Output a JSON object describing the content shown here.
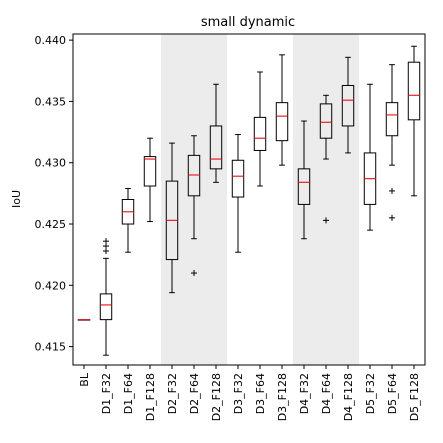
{
  "chart_data": {
    "type": "box",
    "title": "small dynamic",
    "xlabel": "",
    "ylabel": "IoU",
    "ylim": [
      0.4135,
      0.4405
    ],
    "yticks": [
      0.415,
      0.42,
      0.425,
      0.43,
      0.435,
      0.44
    ],
    "ytick_labels": [
      "0.415",
      "0.420",
      "0.425",
      "0.430",
      "0.435",
      "0.440"
    ],
    "grid": false,
    "shaded_groups": [
      [
        "D2_F32",
        "D2_F128"
      ],
      [
        "D4_F32",
        "D4_F128"
      ]
    ],
    "categories": [
      "BL",
      "D1_F32",
      "D1_F64",
      "D1_F128",
      "D2_F32",
      "D2_F64",
      "D2_F128",
      "D3_F32",
      "D3_F64",
      "D3_F128",
      "D4_F32",
      "D4_F64",
      "D4_F128",
      "D5_F32",
      "D5_F64",
      "D5_F128"
    ],
    "boxes": [
      {
        "label": "BL",
        "whisker_low": 0.4172,
        "q1": 0.4172,
        "median": 0.4172,
        "q3": 0.4172,
        "whisker_high": 0.4172,
        "outliers": []
      },
      {
        "label": "D1_F32",
        "whisker_low": 0.4143,
        "q1": 0.4172,
        "median": 0.4184,
        "q3": 0.4193,
        "whisker_high": 0.4222,
        "outliers": [
          0.4228,
          0.4232,
          0.4236
        ]
      },
      {
        "label": "D1_F64",
        "whisker_low": 0.4227,
        "q1": 0.425,
        "median": 0.426,
        "q3": 0.427,
        "whisker_high": 0.4279,
        "outliers": []
      },
      {
        "label": "D1_F128",
        "whisker_low": 0.4252,
        "q1": 0.4281,
        "median": 0.4303,
        "q3": 0.4305,
        "whisker_high": 0.432,
        "outliers": []
      },
      {
        "label": "D2_F32",
        "whisker_low": 0.4194,
        "q1": 0.4221,
        "median": 0.4253,
        "q3": 0.4285,
        "whisker_high": 0.4316,
        "outliers": []
      },
      {
        "label": "D2_F64",
        "whisker_low": 0.4238,
        "q1": 0.4273,
        "median": 0.429,
        "q3": 0.4306,
        "whisker_high": 0.4322,
        "outliers": [
          0.421
        ]
      },
      {
        "label": "D2_F128",
        "whisker_low": 0.4284,
        "q1": 0.4295,
        "median": 0.4303,
        "q3": 0.433,
        "whisker_high": 0.4364,
        "outliers": []
      },
      {
        "label": "D3_F32",
        "whisker_low": 0.4227,
        "q1": 0.4272,
        "median": 0.4289,
        "q3": 0.4302,
        "whisker_high": 0.4323,
        "outliers": []
      },
      {
        "label": "D3_F64",
        "whisker_low": 0.4281,
        "q1": 0.431,
        "median": 0.432,
        "q3": 0.4337,
        "whisker_high": 0.4374,
        "outliers": []
      },
      {
        "label": "D3_F128",
        "whisker_low": 0.4298,
        "q1": 0.4318,
        "median": 0.4338,
        "q3": 0.4349,
        "whisker_high": 0.4388,
        "outliers": []
      },
      {
        "label": "D4_F32",
        "whisker_low": 0.4238,
        "q1": 0.4266,
        "median": 0.4284,
        "q3": 0.4295,
        "whisker_high": 0.4334,
        "outliers": []
      },
      {
        "label": "D4_F64",
        "whisker_low": 0.4303,
        "q1": 0.432,
        "median": 0.4333,
        "q3": 0.4348,
        "whisker_high": 0.4355,
        "outliers": [
          0.4253
        ]
      },
      {
        "label": "D4_F128",
        "whisker_low": 0.4308,
        "q1": 0.433,
        "median": 0.4351,
        "q3": 0.4363,
        "whisker_high": 0.4386,
        "outliers": []
      },
      {
        "label": "D5_F32",
        "whisker_low": 0.4245,
        "q1": 0.4266,
        "median": 0.4287,
        "q3": 0.4308,
        "whisker_high": 0.4364,
        "outliers": []
      },
      {
        "label": "D5_F64",
        "whisker_low": 0.4298,
        "q1": 0.4322,
        "median": 0.4339,
        "q3": 0.4349,
        "whisker_high": 0.438,
        "outliers": [
          0.4255,
          0.4277
        ]
      },
      {
        "label": "D5_F128",
        "whisker_low": 0.4273,
        "q1": 0.4335,
        "median": 0.4355,
        "q3": 0.4382,
        "whisker_high": 0.4395,
        "outliers": []
      }
    ],
    "colors": {
      "box_edge": "#000000",
      "median": "#e8202a",
      "shade": "#ececec",
      "outlier": "#000000"
    }
  }
}
